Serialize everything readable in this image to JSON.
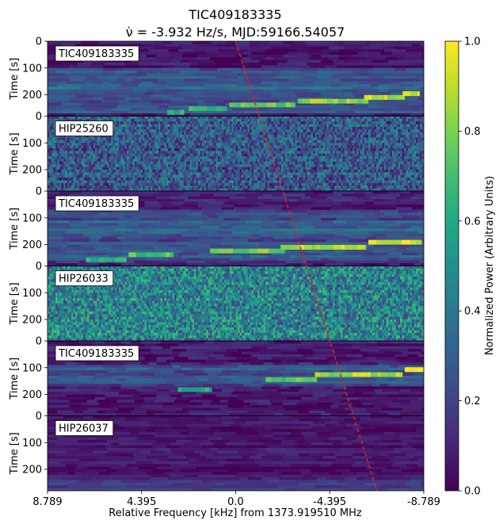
{
  "chart_data": {
    "type": "heatmap",
    "title_line1": "TIC409183335",
    "title_line2": "ν̇ = -3.932 Hz/s, MJD:59166.54057",
    "xlabel": "Relative Frequency [kHz] from 1373.919510 MHz",
    "ylabel": "Time [s]",
    "x_ticks": [
      "8.789",
      "4.395",
      "0.0",
      "-4.395",
      "-8.789"
    ],
    "x_tick_values": [
      8.789,
      4.395,
      0.0,
      -4.395,
      -8.789
    ],
    "xlim": [
      8.789,
      -8.789
    ],
    "y_ticks": [
      0,
      100,
      200
    ],
    "colorbar": {
      "label": "Normalized Power (Arbitrary Units)",
      "ticks": [
        "0.0",
        "0.2",
        "0.4",
        "0.6",
        "0.8",
        "1.0"
      ],
      "range": [
        0.0,
        1.0
      ],
      "colormap": "viridis"
    },
    "panels": [
      {
        "name": "TIC409183335",
        "kind": "on",
        "ylim": [
          0,
          280
        ],
        "bright_frac": 0.35
      },
      {
        "name": "HIP25260",
        "kind": "off-noise",
        "ylim": [
          0,
          280
        ]
      },
      {
        "name": "TIC409183335",
        "kind": "on",
        "ylim": [
          0,
          280
        ],
        "bright_frac": 0.25
      },
      {
        "name": "HIP26033",
        "kind": "off-bright-noise",
        "ylim": [
          0,
          280
        ]
      },
      {
        "name": "TIC409183335",
        "kind": "on",
        "ylim": [
          0,
          280
        ],
        "bright_frac": 0.3
      },
      {
        "name": "HIP26037",
        "kind": "off-dark",
        "ylim": [
          0,
          280
        ]
      }
    ],
    "drift_line": {
      "style": "dashed",
      "color": "#d62728",
      "start": {
        "freq_khz": 0.0,
        "time_s": 0
      },
      "end": {
        "freq_khz": -6.6,
        "time_s": 1680
      }
    },
    "signal_tracks": [
      {
        "panel": 0,
        "segments": [
          [
            3.2,
            2.4,
            285
          ],
          [
            2.2,
            0.4,
            270
          ],
          [
            0.3,
            -2.8,
            255
          ],
          [
            -2.9,
            -6.2,
            240
          ],
          [
            -6.0,
            -7.9,
            225
          ],
          [
            -7.8,
            -8.6,
            210
          ]
        ]
      },
      {
        "panel": 2,
        "segments": [
          [
            7.0,
            5.1,
            275
          ],
          [
            5.0,
            2.9,
            255
          ],
          [
            1.2,
            -2.3,
            240
          ],
          [
            -2.1,
            -6.1,
            225
          ],
          [
            -6.2,
            -8.7,
            205
          ]
        ]
      },
      {
        "panel": 4,
        "segments": [
          [
            2.7,
            1.1,
            195
          ],
          [
            -1.4,
            -3.8,
            155
          ],
          [
            -3.7,
            -7.8,
            135
          ],
          [
            -7.9,
            -8.8,
            115
          ]
        ]
      }
    ]
  }
}
